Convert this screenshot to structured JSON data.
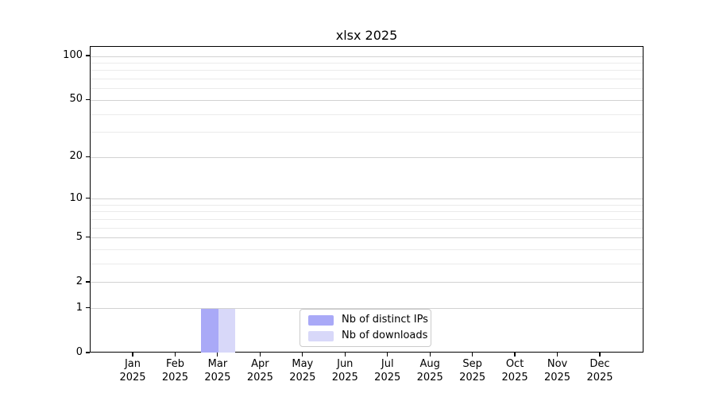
{
  "chart_data": {
    "type": "bar",
    "title": "xlsx 2025",
    "categories": [
      "Jan 2025",
      "Feb 2025",
      "Mar 2025",
      "Apr 2025",
      "May 2025",
      "Jun 2025",
      "Jul 2025",
      "Aug 2025",
      "Sep 2025",
      "Oct 2025",
      "Nov 2025",
      "Dec 2025"
    ],
    "months": [
      "Jan",
      "Feb",
      "Mar",
      "Apr",
      "May",
      "Jun",
      "Jul",
      "Aug",
      "Sep",
      "Oct",
      "Nov",
      "Dec"
    ],
    "year": "2025",
    "series": [
      {
        "name": "Nb of distinct IPs",
        "color": "#a9a9f7",
        "values": [
          0,
          0,
          1,
          0,
          0,
          0,
          0,
          0,
          0,
          0,
          0,
          0
        ]
      },
      {
        "name": "Nb of downloads",
        "color": "#d8d8f9",
        "values": [
          0,
          0,
          1,
          0,
          0,
          0,
          0,
          0,
          0,
          0,
          0,
          0
        ]
      }
    ],
    "xlabel": "",
    "ylabel": "",
    "yaxis": {
      "scale": "log1p",
      "major_ticks": [
        0,
        1,
        2,
        5,
        10,
        20,
        50,
        100
      ],
      "minor_ticks": [
        3,
        4,
        6,
        7,
        8,
        9,
        30,
        40,
        60,
        70,
        80,
        90
      ],
      "ylim": [
        0,
        116
      ]
    },
    "grid": {
      "horizontal": true,
      "vertical": false,
      "major_color": "#d2d2d2",
      "minor_color": "#ebebeb"
    },
    "legend": {
      "position": "lower center",
      "items": [
        "Nb of distinct IPs",
        "Nb of downloads"
      ]
    }
  }
}
